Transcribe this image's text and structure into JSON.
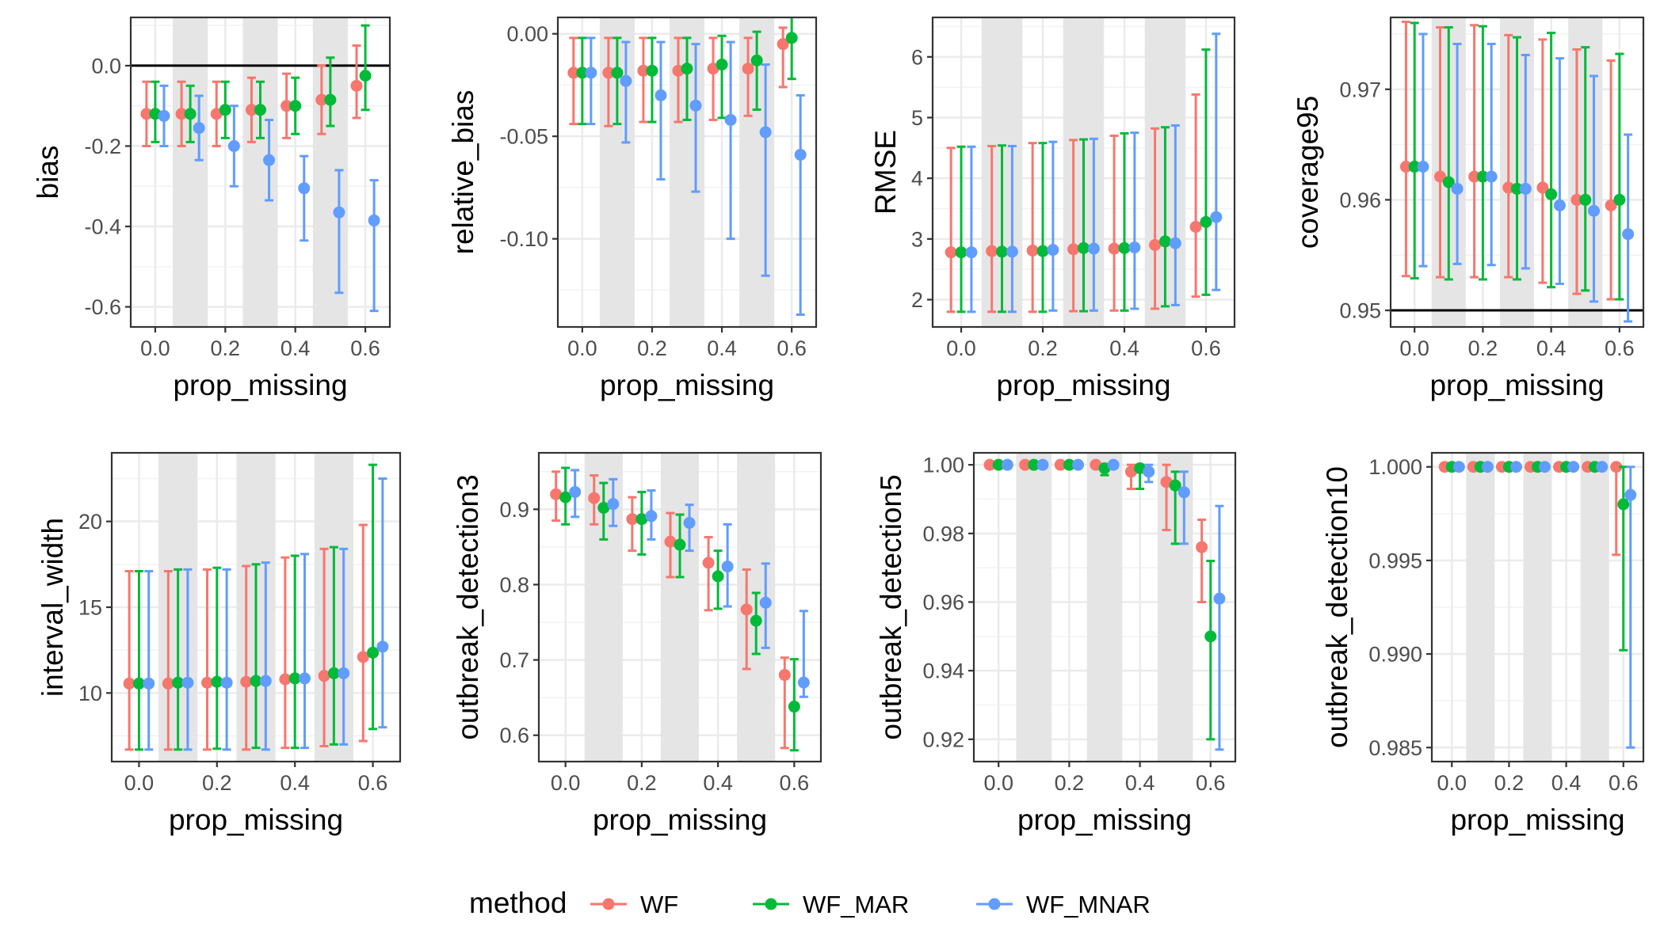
{
  "legend": {
    "title": "method",
    "entries": [
      {
        "name": "WF",
        "color": "#F8766D"
      },
      {
        "name": "WF_MAR",
        "color": "#00BA38"
      },
      {
        "name": "WF_MNAR",
        "color": "#619CFF"
      }
    ]
  },
  "chart_data": [
    {
      "type": "scatter",
      "xlabel": "prop_missing",
      "ylabel": "bias",
      "xlim": [
        -0.07,
        0.67
      ],
      "ylim": [
        -0.65,
        0.12
      ],
      "xticks": [
        0.0,
        0.2,
        0.4,
        0.6
      ],
      "xtick_labels": [
        "0.0",
        "0.2",
        "0.4",
        "0.6"
      ],
      "yticks": [
        -0.6,
        -0.4,
        -0.2,
        0.0
      ],
      "ytick_labels": [
        "-0.6",
        "-0.4",
        "-0.2",
        "0.0"
      ],
      "hline": 0.0,
      "x": [
        0.0,
        0.1,
        0.2,
        0.3,
        0.4,
        0.5,
        0.6
      ],
      "series": [
        {
          "name": "WF",
          "y": [
            -0.12,
            -0.12,
            -0.12,
            -0.11,
            -0.1,
            -0.085,
            -0.05
          ],
          "lo": [
            -0.2,
            -0.2,
            -0.2,
            -0.19,
            -0.18,
            -0.17,
            -0.13
          ],
          "hi": [
            -0.04,
            -0.04,
            -0.04,
            -0.03,
            -0.02,
            0.0,
            0.05
          ]
        },
        {
          "name": "WF_MAR",
          "y": [
            -0.12,
            -0.12,
            -0.11,
            -0.11,
            -0.1,
            -0.085,
            -0.025
          ],
          "lo": [
            -0.19,
            -0.19,
            -0.18,
            -0.18,
            -0.17,
            -0.15,
            -0.11
          ],
          "hi": [
            -0.04,
            -0.05,
            -0.04,
            -0.04,
            -0.03,
            0.02,
            0.1
          ]
        },
        {
          "name": "WF_MNAR",
          "y": [
            -0.125,
            -0.155,
            -0.2,
            -0.235,
            -0.305,
            -0.365,
            -0.385
          ],
          "lo": [
            -0.2,
            -0.235,
            -0.3,
            -0.335,
            -0.435,
            -0.565,
            -0.61
          ],
          "hi": [
            -0.05,
            -0.075,
            -0.1,
            -0.135,
            -0.225,
            -0.26,
            -0.285
          ]
        }
      ]
    },
    {
      "type": "scatter",
      "xlabel": "prop_missing",
      "ylabel": "relative_bias",
      "xlim": [
        -0.07,
        0.67
      ],
      "ylim": [
        -0.143,
        0.008
      ],
      "xticks": [
        0.0,
        0.2,
        0.4,
        0.6
      ],
      "xtick_labels": [
        "0.0",
        "0.2",
        "0.4",
        "0.6"
      ],
      "yticks": [
        -0.1,
        -0.05,
        0.0
      ],
      "ytick_labels": [
        "-0.10",
        "-0.05",
        "0.00"
      ],
      "x": [
        0.0,
        0.1,
        0.2,
        0.3,
        0.4,
        0.5,
        0.6
      ],
      "series": [
        {
          "name": "WF",
          "y": [
            -0.019,
            -0.019,
            -0.018,
            -0.018,
            -0.017,
            -0.017,
            -0.005
          ],
          "lo": [
            -0.044,
            -0.045,
            -0.043,
            -0.043,
            -0.042,
            -0.04,
            -0.026
          ],
          "hi": [
            -0.002,
            -0.002,
            -0.002,
            -0.002,
            -0.002,
            -0.002,
            0.003
          ]
        },
        {
          "name": "WF_MAR",
          "y": [
            -0.019,
            -0.019,
            -0.018,
            -0.017,
            -0.015,
            -0.013,
            -0.002
          ],
          "lo": [
            -0.044,
            -0.044,
            -0.043,
            -0.042,
            -0.041,
            -0.037,
            -0.022
          ],
          "hi": [
            -0.002,
            -0.002,
            -0.002,
            -0.002,
            -0.001,
            0.001,
            0.009
          ]
        },
        {
          "name": "WF_MNAR",
          "y": [
            -0.019,
            -0.023,
            -0.03,
            -0.035,
            -0.042,
            -0.048,
            -0.059
          ],
          "lo": [
            -0.044,
            -0.053,
            -0.071,
            -0.077,
            -0.1,
            -0.118,
            -0.137
          ],
          "hi": [
            -0.002,
            -0.004,
            -0.004,
            -0.005,
            -0.004,
            -0.015,
            -0.03
          ]
        }
      ]
    },
    {
      "type": "scatter",
      "xlabel": "prop_missing",
      "ylabel": "RMSE",
      "xlim": [
        -0.07,
        0.67
      ],
      "ylim": [
        1.55,
        6.65
      ],
      "xticks": [
        0.0,
        0.2,
        0.4,
        0.6
      ],
      "xtick_labels": [
        "0.0",
        "0.2",
        "0.4",
        "0.6"
      ],
      "yticks": [
        2,
        3,
        4,
        5,
        6
      ],
      "ytick_labels": [
        "2",
        "3",
        "4",
        "5",
        "6"
      ],
      "x": [
        0.0,
        0.1,
        0.2,
        0.3,
        0.4,
        0.5,
        0.6
      ],
      "series": [
        {
          "name": "WF",
          "y": [
            2.78,
            2.8,
            2.81,
            2.83,
            2.84,
            2.9,
            3.2
          ],
          "lo": [
            1.8,
            1.8,
            1.8,
            1.81,
            1.82,
            1.85,
            2.05
          ],
          "hi": [
            4.5,
            4.53,
            4.58,
            4.63,
            4.7,
            4.82,
            5.38
          ]
        },
        {
          "name": "WF_MAR",
          "y": [
            2.78,
            2.79,
            2.8,
            2.85,
            2.85,
            2.96,
            3.28
          ],
          "lo": [
            1.8,
            1.8,
            1.8,
            1.81,
            1.82,
            1.89,
            2.08
          ],
          "hi": [
            4.52,
            4.54,
            4.58,
            4.64,
            4.74,
            4.84,
            6.12
          ]
        },
        {
          "name": "WF_MNAR",
          "y": [
            2.78,
            2.79,
            2.82,
            2.84,
            2.86,
            2.93,
            3.36
          ],
          "lo": [
            1.8,
            1.8,
            1.82,
            1.82,
            1.85,
            1.91,
            2.16
          ],
          "hi": [
            4.52,
            4.53,
            4.6,
            4.65,
            4.75,
            4.87,
            6.38
          ]
        }
      ]
    },
    {
      "type": "scatter",
      "xlabel": "prop_missing",
      "ylabel": "coverage95",
      "xlim": [
        -0.07,
        0.67
      ],
      "ylim": [
        0.9485,
        0.9765
      ],
      "xticks": [
        0.0,
        0.2,
        0.4,
        0.6
      ],
      "xtick_labels": [
        "0.0",
        "0.2",
        "0.4",
        "0.6"
      ],
      "yticks": [
        0.95,
        0.96,
        0.97
      ],
      "ytick_labels": [
        "0.95",
        "0.96",
        "0.97"
      ],
      "hline": 0.95,
      "x": [
        0.0,
        0.1,
        0.2,
        0.3,
        0.4,
        0.5,
        0.6
      ],
      "series": [
        {
          "name": "WF",
          "y": [
            0.963,
            0.9621,
            0.9621,
            0.9611,
            0.9611,
            0.96,
            0.9595
          ],
          "lo": [
            0.9531,
            0.953,
            0.953,
            0.953,
            0.9525,
            0.9515,
            0.951
          ],
          "hi": [
            0.9761,
            0.9756,
            0.9758,
            0.9749,
            0.9745,
            0.9736,
            0.9726
          ]
        },
        {
          "name": "WF_MAR",
          "y": [
            0.963,
            0.9616,
            0.9621,
            0.961,
            0.9605,
            0.96,
            0.96
          ],
          "lo": [
            0.9529,
            0.9528,
            0.9528,
            0.9528,
            0.9521,
            0.9518,
            0.951
          ],
          "hi": [
            0.976,
            0.9756,
            0.9757,
            0.9747,
            0.9751,
            0.9738,
            0.9732
          ]
        },
        {
          "name": "WF_MNAR",
          "y": [
            0.963,
            0.961,
            0.9621,
            0.961,
            0.9595,
            0.959,
            0.9569
          ],
          "lo": [
            0.954,
            0.9542,
            0.9541,
            0.9538,
            0.9524,
            0.9508,
            0.949
          ],
          "hi": [
            0.975,
            0.9741,
            0.9741,
            0.9731,
            0.9728,
            0.9712,
            0.9659
          ]
        }
      ]
    },
    {
      "type": "scatter",
      "xlabel": "prop_missing",
      "ylabel": "interval_width",
      "xlim": [
        -0.07,
        0.67
      ],
      "ylim": [
        6.0,
        24.0
      ],
      "xticks": [
        0.0,
        0.2,
        0.4,
        0.6
      ],
      "xtick_labels": [
        "0.0",
        "0.2",
        "0.4",
        "0.6"
      ],
      "yticks": [
        10,
        15,
        20
      ],
      "ytick_labels": [
        "10",
        "15",
        "20"
      ],
      "x": [
        0.0,
        0.1,
        0.2,
        0.3,
        0.4,
        0.5,
        0.6
      ],
      "series": [
        {
          "name": "WF",
          "y": [
            10.55,
            10.55,
            10.6,
            10.65,
            10.8,
            11.0,
            12.1
          ],
          "lo": [
            6.7,
            6.7,
            6.7,
            6.7,
            6.8,
            6.9,
            7.2
          ],
          "hi": [
            17.1,
            17.1,
            17.2,
            17.4,
            17.9,
            18.4,
            19.8
          ]
        },
        {
          "name": "WF_MAR",
          "y": [
            10.55,
            10.6,
            10.65,
            10.7,
            10.85,
            11.15,
            12.35
          ],
          "lo": [
            6.7,
            6.7,
            6.75,
            6.8,
            6.8,
            7.0,
            7.9
          ],
          "hi": [
            17.1,
            17.2,
            17.3,
            17.5,
            18.0,
            18.5,
            23.3
          ]
        },
        {
          "name": "WF_MNAR",
          "y": [
            10.55,
            10.6,
            10.6,
            10.7,
            10.85,
            11.15,
            12.7
          ],
          "lo": [
            6.7,
            6.7,
            6.7,
            6.7,
            6.8,
            7.0,
            8.0
          ],
          "hi": [
            17.1,
            17.2,
            17.2,
            17.6,
            18.1,
            18.4,
            22.5
          ]
        }
      ]
    },
    {
      "type": "scatter",
      "xlabel": "prop_missing",
      "ylabel": "outbreak_detection3",
      "xlim": [
        -0.07,
        0.67
      ],
      "ylim": [
        0.565,
        0.975
      ],
      "xticks": [
        0.0,
        0.2,
        0.4,
        0.6
      ],
      "xtick_labels": [
        "0.0",
        "0.2",
        "0.4",
        "0.6"
      ],
      "yticks": [
        0.6,
        0.7,
        0.8,
        0.9
      ],
      "ytick_labels": [
        "0.6",
        "0.7",
        "0.8",
        "0.9"
      ],
      "x": [
        0.0,
        0.1,
        0.2,
        0.3,
        0.4,
        0.5,
        0.6
      ],
      "series": [
        {
          "name": "WF",
          "y": [
            0.92,
            0.915,
            0.887,
            0.857,
            0.829,
            0.767,
            0.68
          ],
          "lo": [
            0.885,
            0.88,
            0.845,
            0.81,
            0.766,
            0.688,
            0.583
          ],
          "hi": [
            0.95,
            0.945,
            0.916,
            0.895,
            0.863,
            0.82,
            0.703
          ]
        },
        {
          "name": "WF_MAR",
          "y": [
            0.916,
            0.902,
            0.887,
            0.853,
            0.811,
            0.752,
            0.638
          ],
          "lo": [
            0.88,
            0.86,
            0.84,
            0.81,
            0.768,
            0.708,
            0.58
          ],
          "hi": [
            0.955,
            0.935,
            0.923,
            0.893,
            0.845,
            0.789,
            0.701
          ]
        },
        {
          "name": "WF_MNAR",
          "y": [
            0.923,
            0.907,
            0.891,
            0.882,
            0.824,
            0.776,
            0.67
          ],
          "lo": [
            0.89,
            0.878,
            0.86,
            0.845,
            0.771,
            0.716,
            0.651
          ],
          "hi": [
            0.952,
            0.94,
            0.925,
            0.906,
            0.88,
            0.828,
            0.765
          ]
        }
      ]
    },
    {
      "type": "scatter",
      "xlabel": "prop_missing",
      "ylabel": "outbreak_detection5",
      "xlim": [
        -0.07,
        0.67
      ],
      "ylim": [
        0.9135,
        1.0035
      ],
      "xticks": [
        0.0,
        0.2,
        0.4,
        0.6
      ],
      "xtick_labels": [
        "0.0",
        "0.2",
        "0.4",
        "0.6"
      ],
      "yticks": [
        0.92,
        0.94,
        0.96,
        0.98,
        1.0
      ],
      "ytick_labels": [
        "0.92",
        "0.94",
        "0.96",
        "0.98",
        "1.00"
      ],
      "x": [
        0.0,
        0.1,
        0.2,
        0.3,
        0.4,
        0.5,
        0.6
      ],
      "series": [
        {
          "name": "WF",
          "y": [
            1.0,
            1.0,
            1.0,
            1.0,
            0.998,
            0.995,
            0.976
          ],
          "lo": [
            1.0,
            1.0,
            1.0,
            1.0,
            0.993,
            0.981,
            0.96
          ],
          "hi": [
            1.0,
            1.0,
            1.0,
            1.0,
            1.0,
            1.0,
            0.984
          ]
        },
        {
          "name": "WF_MAR",
          "y": [
            1.0,
            1.0,
            1.0,
            0.999,
            0.999,
            0.994,
            0.95
          ],
          "lo": [
            1.0,
            1.0,
            1.0,
            0.997,
            0.993,
            0.977,
            0.92
          ],
          "hi": [
            1.0,
            1.0,
            1.0,
            1.0,
            1.0,
            0.998,
            0.972
          ]
        },
        {
          "name": "WF_MNAR",
          "y": [
            1.0,
            1.0,
            1.0,
            1.0,
            0.998,
            0.992,
            0.961
          ],
          "lo": [
            1.0,
            1.0,
            1.0,
            1.0,
            0.995,
            0.977,
            0.917
          ],
          "hi": [
            1.0,
            1.0,
            1.0,
            1.0,
            1.0,
            0.998,
            0.988
          ]
        }
      ]
    },
    {
      "type": "scatter",
      "xlabel": "prop_missing",
      "ylabel": "outbreak_detection10",
      "xlim": [
        -0.07,
        0.67
      ],
      "ylim": [
        0.98425,
        1.00075
      ],
      "xticks": [
        0.0,
        0.2,
        0.4,
        0.6
      ],
      "xtick_labels": [
        "0.0",
        "0.2",
        "0.4",
        "0.6"
      ],
      "yticks": [
        0.985,
        0.99,
        0.995,
        1.0
      ],
      "ytick_labels": [
        "0.985",
        "0.990",
        "0.995",
        "1.000"
      ],
      "x": [
        0.0,
        0.1,
        0.2,
        0.3,
        0.4,
        0.5,
        0.6
      ],
      "series": [
        {
          "name": "WF",
          "y": [
            1.0,
            1.0,
            1.0,
            1.0,
            1.0,
            1.0,
            1.0
          ],
          "lo": [
            1.0,
            1.0,
            1.0,
            1.0,
            1.0,
            1.0,
            0.9953
          ],
          "hi": [
            1.0,
            1.0,
            1.0,
            1.0,
            1.0,
            1.0,
            1.0
          ]
        },
        {
          "name": "WF_MAR",
          "y": [
            1.0,
            1.0,
            1.0,
            1.0,
            1.0,
            1.0,
            0.998
          ],
          "lo": [
            1.0,
            1.0,
            1.0,
            1.0,
            1.0,
            1.0,
            0.9902
          ],
          "hi": [
            1.0,
            1.0,
            1.0,
            1.0,
            1.0,
            1.0,
            1.0
          ]
        },
        {
          "name": "WF_MNAR",
          "y": [
            1.0,
            1.0,
            1.0,
            1.0,
            1.0,
            1.0,
            0.9985
          ],
          "lo": [
            1.0,
            1.0,
            1.0,
            1.0,
            1.0,
            1.0,
            0.985
          ],
          "hi": [
            1.0,
            1.0,
            1.0,
            1.0,
            1.0,
            1.0,
            1.0
          ]
        }
      ]
    }
  ]
}
